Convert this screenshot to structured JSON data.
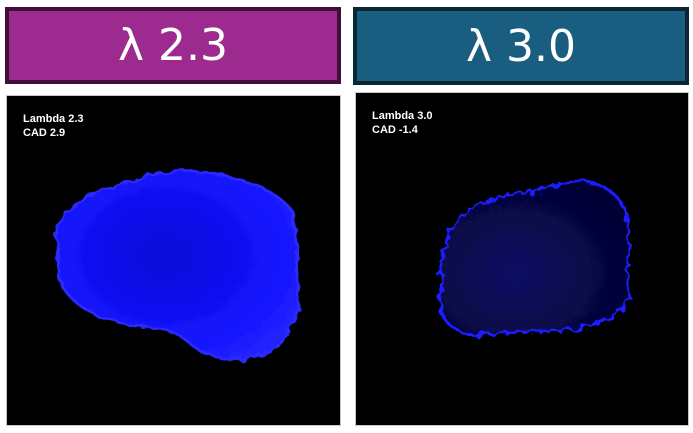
{
  "panels": [
    {
      "header": "λ 2.3",
      "header_color": "#9d2b8f",
      "label_line1": "Lambda 2.3",
      "label_line2": "CAD 2.9",
      "blob_color": "#1010ff"
    },
    {
      "header": "λ 3.0",
      "header_color": "#195e80",
      "label_line1": "Lambda 3.0",
      "label_line2": "CAD -1.4",
      "blob_color": "#1a1aff"
    }
  ]
}
